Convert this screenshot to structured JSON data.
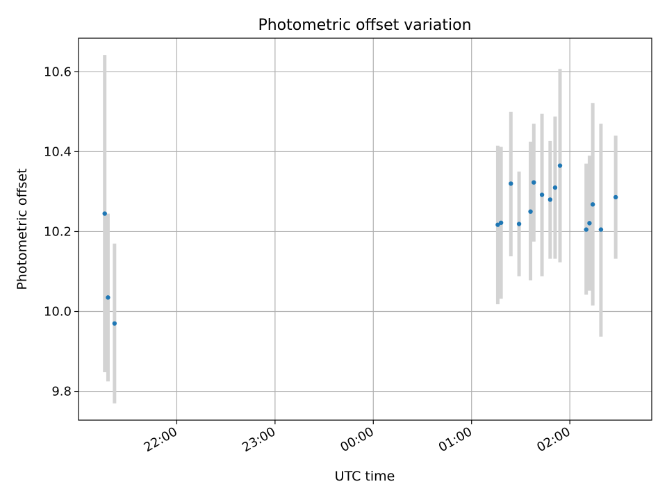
{
  "chart_data": {
    "type": "scatter",
    "title": "Photometric offset variation",
    "xlabel": "UTC time",
    "ylabel": "Photometric offset",
    "x_tick_labels": [
      "22:00",
      "23:00",
      "00:00",
      "01:00",
      "02:00"
    ],
    "x_tick_hours": [
      22,
      23,
      24,
      25,
      26
    ],
    "y_ticks": [
      9.8,
      10.0,
      10.2,
      10.4,
      10.6
    ],
    "y_tick_labels": [
      "9.8",
      "10.0",
      "10.2",
      "10.4",
      "10.6"
    ],
    "xlim": [
      "21:00",
      "02:50"
    ],
    "ylim": [
      9.728,
      10.684
    ],
    "grid": true,
    "colors": {
      "point": "#1f77b4",
      "errorbar": "#d3d3d3",
      "grid": "#b0b0b0"
    },
    "points": [
      {
        "time": "21:16",
        "y": 10.245,
        "ylo": 9.848,
        "yhi": 10.642
      },
      {
        "time": "21:18",
        "y": 10.035,
        "ylo": 9.825,
        "yhi": 10.245
      },
      {
        "time": "21:22",
        "y": 9.97,
        "ylo": 9.77,
        "yhi": 10.17
      },
      {
        "time": "01:16",
        "y": 10.217,
        "ylo": 10.018,
        "yhi": 10.415
      },
      {
        "time": "01:18",
        "y": 10.222,
        "ylo": 10.032,
        "yhi": 10.412
      },
      {
        "time": "01:24",
        "y": 10.32,
        "ylo": 10.138,
        "yhi": 10.5
      },
      {
        "time": "01:29",
        "y": 10.219,
        "ylo": 10.088,
        "yhi": 10.35
      },
      {
        "time": "01:36",
        "y": 10.25,
        "ylo": 10.078,
        "yhi": 10.425
      },
      {
        "time": "01:38",
        "y": 10.323,
        "ylo": 10.175,
        "yhi": 10.47
      },
      {
        "time": "01:43",
        "y": 10.292,
        "ylo": 10.088,
        "yhi": 10.495
      },
      {
        "time": "01:48",
        "y": 10.28,
        "ylo": 10.132,
        "yhi": 10.427
      },
      {
        "time": "01:51",
        "y": 10.31,
        "ylo": 10.132,
        "yhi": 10.488
      },
      {
        "time": "01:54",
        "y": 10.365,
        "ylo": 10.123,
        "yhi": 10.607
      },
      {
        "time": "02:10",
        "y": 10.205,
        "ylo": 10.042,
        "yhi": 10.37
      },
      {
        "time": "02:12",
        "y": 10.221,
        "ylo": 10.052,
        "yhi": 10.39
      },
      {
        "time": "02:14",
        "y": 10.268,
        "ylo": 10.015,
        "yhi": 10.522
      },
      {
        "time": "02:19",
        "y": 10.205,
        "ylo": 9.937,
        "yhi": 10.47
      },
      {
        "time": "02:28",
        "y": 10.286,
        "ylo": 10.132,
        "yhi": 10.44
      }
    ]
  }
}
